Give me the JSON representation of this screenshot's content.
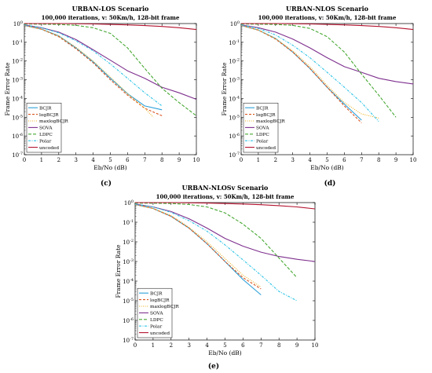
{
  "legend_entries": [
    {
      "name": "BCJR",
      "color": "#2b9fd8",
      "dash": ""
    },
    {
      "name": "logBCJR",
      "color": "#d9531e",
      "dash": "3,2"
    },
    {
      "name": "maxlogBCJR",
      "color": "#edb120",
      "dash": "1,1.5"
    },
    {
      "name": "SOVA",
      "color": "#7e2f8e",
      "dash": ""
    },
    {
      "name": "LDPC",
      "color": "#46a832",
      "dash": "4,2"
    },
    {
      "name": "Polar",
      "color": "#2ec4e6",
      "dash": "3,1.5,1,1.5"
    },
    {
      "name": "uncoded",
      "color": "#b3122e",
      "dash": ""
    }
  ],
  "chart_data": [
    {
      "type": "line",
      "panel_label": "(c)",
      "title": "URBAN-LOS Scenario",
      "subtitle": "100,000 iterations, v: 50Km/h, 128-bit frame",
      "xlabel": "Eb/No (dB)",
      "ylabel": "Frame Error Rate",
      "xlim": [
        0,
        10
      ],
      "ylim": [
        1e-07,
        1
      ],
      "yscale": "log",
      "x_ticks": [
        "0",
        "1",
        "2",
        "3",
        "4",
        "5",
        "6",
        "7",
        "8",
        "9",
        "10"
      ],
      "y_ticks": [
        "10^0",
        "10^-1",
        "10^-2",
        "10^-3",
        "10^-4",
        "10^-5",
        "10^-6",
        "10^-7"
      ],
      "grid": false,
      "legend_position": "lower-left",
      "series": [
        {
          "name": "BCJR",
          "x": [
            0,
            1,
            2,
            3,
            4,
            5,
            6,
            7,
            8
          ],
          "y": [
            0.8,
            0.5,
            0.22,
            0.05,
            0.009,
            0.0012,
            0.00018,
            4e-05,
            2.5e-05
          ]
        },
        {
          "name": "logBCJR",
          "x": [
            0,
            1,
            2,
            3,
            4,
            5,
            6,
            7,
            8
          ],
          "y": [
            0.8,
            0.5,
            0.2,
            0.045,
            0.008,
            0.001,
            0.00015,
            3e-05,
            1.2e-05
          ]
        },
        {
          "name": "maxlogBCJR",
          "x": [
            0,
            1,
            2,
            3,
            4,
            5,
            6,
            7,
            7.5
          ],
          "y": [
            0.8,
            0.5,
            0.22,
            0.055,
            0.01,
            0.0014,
            0.00018,
            3e-05,
            1e-05
          ]
        },
        {
          "name": "SOVA",
          "x": [
            0,
            1,
            2,
            3,
            4,
            5,
            6,
            7,
            8,
            9,
            10
          ],
          "y": [
            0.85,
            0.6,
            0.35,
            0.14,
            0.04,
            0.011,
            0.003,
            0.0012,
            0.0004,
            0.0002,
            9e-05
          ]
        },
        {
          "name": "LDPC",
          "x": [
            0,
            1,
            2,
            3,
            4,
            5,
            6,
            7,
            8,
            9,
            10
          ],
          "y": [
            0.95,
            0.93,
            0.9,
            0.8,
            0.6,
            0.3,
            0.05,
            0.004,
            0.00035,
            6e-05,
            1.2e-05
          ]
        },
        {
          "name": "Polar",
          "x": [
            0,
            1,
            2,
            3,
            4,
            5,
            6,
            7,
            8
          ],
          "y": [
            0.85,
            0.6,
            0.32,
            0.12,
            0.035,
            0.007,
            0.0012,
            0.0002,
            4e-05
          ]
        },
        {
          "name": "uncoded",
          "x": [
            0,
            2,
            4,
            6,
            7,
            8,
            9,
            10
          ],
          "y": [
            1,
            1,
            0.95,
            0.85,
            0.78,
            0.7,
            0.6,
            0.48
          ]
        }
      ]
    },
    {
      "type": "line",
      "panel_label": "(d)",
      "title": "URBAN-NLOS Scenario",
      "subtitle": "100,000 iterations, v: 50Km/h, 128-bit frame",
      "xlabel": "Eb/No (dB)",
      "ylabel": "Frame Error Rate",
      "xlim": [
        0,
        10
      ],
      "ylim": [
        1e-07,
        1
      ],
      "yscale": "log",
      "x_ticks": [
        "0",
        "1",
        "2",
        "3",
        "4",
        "5",
        "6",
        "7",
        "8",
        "9",
        "10"
      ],
      "y_ticks": [
        "10^0",
        "10^-1",
        "10^-2",
        "10^-3",
        "10^-4",
        "10^-5",
        "10^-6",
        "10^-7"
      ],
      "grid": false,
      "legend_position": "lower-left",
      "series": [
        {
          "name": "BCJR",
          "x": [
            0,
            1,
            2,
            3,
            4,
            5,
            6,
            7
          ],
          "y": [
            0.8,
            0.45,
            0.16,
            0.03,
            0.004,
            0.0004,
            5e-05,
            7e-06
          ]
        },
        {
          "name": "logBCJR",
          "x": [
            0,
            1,
            2,
            3,
            4,
            5,
            6,
            7
          ],
          "y": [
            0.8,
            0.45,
            0.15,
            0.03,
            0.004,
            0.0004,
            4e-05,
            5e-06
          ]
        },
        {
          "name": "maxlogBCJR",
          "x": [
            0,
            1,
            2,
            3,
            4,
            5,
            6,
            7,
            8
          ],
          "y": [
            0.8,
            0.45,
            0.16,
            0.035,
            0.005,
            0.0005,
            6e-05,
            1.5e-05,
            9e-06
          ]
        },
        {
          "name": "SOVA",
          "x": [
            0,
            1,
            2,
            3,
            4,
            5,
            6,
            7,
            8,
            9,
            10
          ],
          "y": [
            0.85,
            0.6,
            0.35,
            0.15,
            0.05,
            0.015,
            0.005,
            0.0025,
            0.0012,
            0.0008,
            0.0006
          ]
        },
        {
          "name": "LDPC",
          "x": [
            0,
            1,
            2,
            3,
            4,
            5,
            6,
            7,
            8,
            9
          ],
          "y": [
            0.95,
            0.93,
            0.9,
            0.8,
            0.55,
            0.2,
            0.03,
            0.002,
            0.00015,
            1e-05
          ]
        },
        {
          "name": "Polar",
          "x": [
            0,
            1,
            2,
            3,
            4,
            5,
            6,
            7,
            8
          ],
          "y": [
            0.85,
            0.55,
            0.25,
            0.07,
            0.015,
            0.0025,
            0.0004,
            6e-05,
            6e-06
          ]
        },
        {
          "name": "uncoded",
          "x": [
            0,
            2,
            4,
            6,
            7,
            8,
            9,
            10
          ],
          "y": [
            1,
            1,
            0.95,
            0.85,
            0.78,
            0.7,
            0.6,
            0.48
          ]
        }
      ]
    },
    {
      "type": "line",
      "panel_label": "(e)",
      "title": "URBAN-NLOSv Scenario",
      "subtitle": "100,000 iterations, v: 50Km/h, 128-bit frame",
      "xlabel": "Eb/No (dB)",
      "ylabel": "Frame Error Rate",
      "xlim": [
        0,
        10
      ],
      "ylim": [
        1e-07,
        1
      ],
      "yscale": "log",
      "x_ticks": [
        "0",
        "1",
        "2",
        "3",
        "4",
        "5",
        "6",
        "7",
        "8",
        "9",
        "10"
      ],
      "y_ticks": [
        "10^0",
        "10^-1",
        "10^-2",
        "10^-3",
        "10^-4",
        "10^-5",
        "10^-6",
        "10^-7"
      ],
      "grid": false,
      "legend_position": "lower-left",
      "series": [
        {
          "name": "BCJR",
          "x": [
            0,
            1,
            2,
            3,
            4,
            5,
            6,
            7
          ],
          "y": [
            0.8,
            0.5,
            0.2,
            0.05,
            0.008,
            0.001,
            0.00012,
            2e-05
          ]
        },
        {
          "name": "logBCJR",
          "x": [
            0,
            1,
            2,
            3,
            4,
            5,
            6,
            7
          ],
          "y": [
            0.8,
            0.5,
            0.2,
            0.05,
            0.008,
            0.001,
            0.00015,
            4e-05
          ]
        },
        {
          "name": "maxlogBCJR",
          "x": [
            0,
            1,
            2,
            3,
            4,
            5,
            6,
            7
          ],
          "y": [
            0.8,
            0.5,
            0.22,
            0.055,
            0.01,
            0.0014,
            0.0002,
            5e-05
          ]
        },
        {
          "name": "SOVA",
          "x": [
            0,
            1,
            2,
            3,
            4,
            5,
            6,
            7,
            8,
            9,
            10
          ],
          "y": [
            0.85,
            0.6,
            0.35,
            0.15,
            0.05,
            0.015,
            0.006,
            0.003,
            0.0018,
            0.0013,
            0.001
          ]
        },
        {
          "name": "LDPC",
          "x": [
            0,
            1,
            2,
            3,
            4,
            5,
            6,
            7,
            8,
            9
          ],
          "y": [
            0.95,
            0.93,
            0.9,
            0.8,
            0.6,
            0.3,
            0.08,
            0.015,
            0.0015,
            0.00015
          ]
        },
        {
          "name": "Polar",
          "x": [
            0,
            1,
            2,
            3,
            4,
            5,
            6,
            7,
            8,
            9
          ],
          "y": [
            0.85,
            0.6,
            0.32,
            0.12,
            0.035,
            0.007,
            0.0012,
            0.0002,
            3e-05,
            1e-05
          ]
        },
        {
          "name": "uncoded",
          "x": [
            0,
            2,
            4,
            6,
            7,
            8,
            9,
            10
          ],
          "y": [
            1,
            1,
            0.95,
            0.85,
            0.78,
            0.7,
            0.6,
            0.48
          ]
        }
      ]
    }
  ]
}
